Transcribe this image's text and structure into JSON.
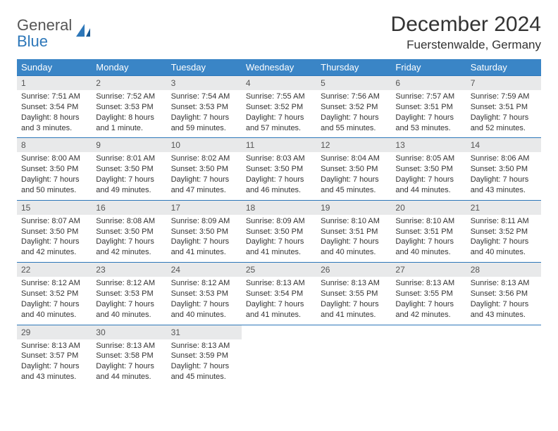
{
  "brand": {
    "general": "General",
    "blue": "Blue"
  },
  "title": "December 2024",
  "location": "Fuerstenwalde, Germany",
  "colors": {
    "header_bg": "#3a85c6",
    "header_text": "#ffffff",
    "daynum_bg": "#e8e9ea",
    "border": "#2d77b9",
    "text": "#333333",
    "logo_gray": "#555555",
    "logo_blue": "#2d77b9",
    "background": "#ffffff"
  },
  "day_names": [
    "Sunday",
    "Monday",
    "Tuesday",
    "Wednesday",
    "Thursday",
    "Friday",
    "Saturday"
  ],
  "weeks": [
    [
      {
        "n": "1",
        "sr": "Sunrise: 7:51 AM",
        "ss": "Sunset: 3:54 PM",
        "dl": "Daylight: 8 hours and 3 minutes."
      },
      {
        "n": "2",
        "sr": "Sunrise: 7:52 AM",
        "ss": "Sunset: 3:53 PM",
        "dl": "Daylight: 8 hours and 1 minute."
      },
      {
        "n": "3",
        "sr": "Sunrise: 7:54 AM",
        "ss": "Sunset: 3:53 PM",
        "dl": "Daylight: 7 hours and 59 minutes."
      },
      {
        "n": "4",
        "sr": "Sunrise: 7:55 AM",
        "ss": "Sunset: 3:52 PM",
        "dl": "Daylight: 7 hours and 57 minutes."
      },
      {
        "n": "5",
        "sr": "Sunrise: 7:56 AM",
        "ss": "Sunset: 3:52 PM",
        "dl": "Daylight: 7 hours and 55 minutes."
      },
      {
        "n": "6",
        "sr": "Sunrise: 7:57 AM",
        "ss": "Sunset: 3:51 PM",
        "dl": "Daylight: 7 hours and 53 minutes."
      },
      {
        "n": "7",
        "sr": "Sunrise: 7:59 AM",
        "ss": "Sunset: 3:51 PM",
        "dl": "Daylight: 7 hours and 52 minutes."
      }
    ],
    [
      {
        "n": "8",
        "sr": "Sunrise: 8:00 AM",
        "ss": "Sunset: 3:50 PM",
        "dl": "Daylight: 7 hours and 50 minutes."
      },
      {
        "n": "9",
        "sr": "Sunrise: 8:01 AM",
        "ss": "Sunset: 3:50 PM",
        "dl": "Daylight: 7 hours and 49 minutes."
      },
      {
        "n": "10",
        "sr": "Sunrise: 8:02 AM",
        "ss": "Sunset: 3:50 PM",
        "dl": "Daylight: 7 hours and 47 minutes."
      },
      {
        "n": "11",
        "sr": "Sunrise: 8:03 AM",
        "ss": "Sunset: 3:50 PM",
        "dl": "Daylight: 7 hours and 46 minutes."
      },
      {
        "n": "12",
        "sr": "Sunrise: 8:04 AM",
        "ss": "Sunset: 3:50 PM",
        "dl": "Daylight: 7 hours and 45 minutes."
      },
      {
        "n": "13",
        "sr": "Sunrise: 8:05 AM",
        "ss": "Sunset: 3:50 PM",
        "dl": "Daylight: 7 hours and 44 minutes."
      },
      {
        "n": "14",
        "sr": "Sunrise: 8:06 AM",
        "ss": "Sunset: 3:50 PM",
        "dl": "Daylight: 7 hours and 43 minutes."
      }
    ],
    [
      {
        "n": "15",
        "sr": "Sunrise: 8:07 AM",
        "ss": "Sunset: 3:50 PM",
        "dl": "Daylight: 7 hours and 42 minutes."
      },
      {
        "n": "16",
        "sr": "Sunrise: 8:08 AM",
        "ss": "Sunset: 3:50 PM",
        "dl": "Daylight: 7 hours and 42 minutes."
      },
      {
        "n": "17",
        "sr": "Sunrise: 8:09 AM",
        "ss": "Sunset: 3:50 PM",
        "dl": "Daylight: 7 hours and 41 minutes."
      },
      {
        "n": "18",
        "sr": "Sunrise: 8:09 AM",
        "ss": "Sunset: 3:50 PM",
        "dl": "Daylight: 7 hours and 41 minutes."
      },
      {
        "n": "19",
        "sr": "Sunrise: 8:10 AM",
        "ss": "Sunset: 3:51 PM",
        "dl": "Daylight: 7 hours and 40 minutes."
      },
      {
        "n": "20",
        "sr": "Sunrise: 8:10 AM",
        "ss": "Sunset: 3:51 PM",
        "dl": "Daylight: 7 hours and 40 minutes."
      },
      {
        "n": "21",
        "sr": "Sunrise: 8:11 AM",
        "ss": "Sunset: 3:52 PM",
        "dl": "Daylight: 7 hours and 40 minutes."
      }
    ],
    [
      {
        "n": "22",
        "sr": "Sunrise: 8:12 AM",
        "ss": "Sunset: 3:52 PM",
        "dl": "Daylight: 7 hours and 40 minutes."
      },
      {
        "n": "23",
        "sr": "Sunrise: 8:12 AM",
        "ss": "Sunset: 3:53 PM",
        "dl": "Daylight: 7 hours and 40 minutes."
      },
      {
        "n": "24",
        "sr": "Sunrise: 8:12 AM",
        "ss": "Sunset: 3:53 PM",
        "dl": "Daylight: 7 hours and 40 minutes."
      },
      {
        "n": "25",
        "sr": "Sunrise: 8:13 AM",
        "ss": "Sunset: 3:54 PM",
        "dl": "Daylight: 7 hours and 41 minutes."
      },
      {
        "n": "26",
        "sr": "Sunrise: 8:13 AM",
        "ss": "Sunset: 3:55 PM",
        "dl": "Daylight: 7 hours and 41 minutes."
      },
      {
        "n": "27",
        "sr": "Sunrise: 8:13 AM",
        "ss": "Sunset: 3:55 PM",
        "dl": "Daylight: 7 hours and 42 minutes."
      },
      {
        "n": "28",
        "sr": "Sunrise: 8:13 AM",
        "ss": "Sunset: 3:56 PM",
        "dl": "Daylight: 7 hours and 43 minutes."
      }
    ],
    [
      {
        "n": "29",
        "sr": "Sunrise: 8:13 AM",
        "ss": "Sunset: 3:57 PM",
        "dl": "Daylight: 7 hours and 43 minutes."
      },
      {
        "n": "30",
        "sr": "Sunrise: 8:13 AM",
        "ss": "Sunset: 3:58 PM",
        "dl": "Daylight: 7 hours and 44 minutes."
      },
      {
        "n": "31",
        "sr": "Sunrise: 8:13 AM",
        "ss": "Sunset: 3:59 PM",
        "dl": "Daylight: 7 hours and 45 minutes."
      },
      null,
      null,
      null,
      null
    ]
  ]
}
